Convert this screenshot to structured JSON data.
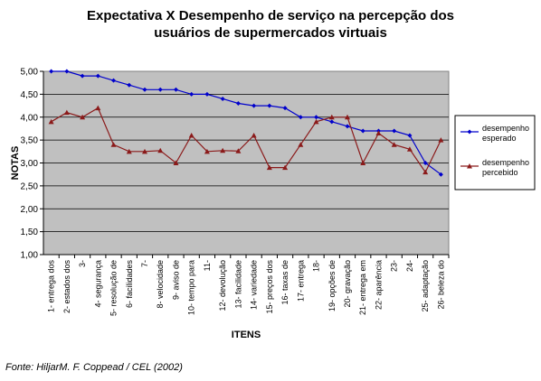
{
  "chart_data": {
    "type": "line",
    "title_line1": "Expectativa X Desempenho de serviço na percepção dos",
    "title_line2": "usuários de supermercados virtuais",
    "xlabel": "ITENS",
    "ylabel": "NOTAS",
    "ylim": [
      1.0,
      5.0
    ],
    "ytick_labels": [
      "1,00",
      "1,50",
      "2,00",
      "2,50",
      "3,00",
      "3,50",
      "4,00",
      "4,50",
      "5,00"
    ],
    "grid": true,
    "legend_position": "right",
    "categories": [
      "1- entrega dos",
      "2- estados dos",
      "3-",
      "4- segurança",
      "5- resolução de",
      "6- facilidades",
      "7-",
      "8- velocidade",
      "9- aviso de",
      "10- tempo para",
      "11-",
      "12- devolução",
      "13- facilidade",
      "14- variedade",
      "15- preços dos",
      "16- taxas de",
      "17- entrega",
      "18-",
      "19- opções de",
      "20- gravação",
      "21- entrega em",
      "22- aparência",
      "23-",
      "24-",
      "25- adaptação",
      "26- beleza do"
    ],
    "series": [
      {
        "name_line1": "desempenho",
        "name_line2": "esperado",
        "color": "#0000cc",
        "marker": "diamond",
        "values": [
          5.0,
          5.0,
          4.9,
          4.9,
          4.8,
          4.7,
          4.6,
          4.6,
          4.6,
          4.5,
          4.5,
          4.4,
          4.3,
          4.25,
          4.25,
          4.2,
          4.0,
          4.0,
          3.9,
          3.8,
          3.7,
          3.7,
          3.7,
          3.6,
          3.0,
          2.75
        ]
      },
      {
        "name_line1": "desempenho",
        "name_line2": "percebido",
        "color": "#8b1a1a",
        "marker": "triangle",
        "values": [
          3.9,
          4.1,
          4.0,
          4.2,
          3.4,
          3.25,
          3.25,
          3.27,
          3.0,
          3.6,
          3.25,
          3.27,
          3.26,
          3.6,
          2.9,
          2.9,
          3.4,
          3.9,
          4.0,
          4.0,
          3.0,
          3.65,
          3.4,
          3.3,
          2.8,
          3.5
        ]
      }
    ]
  },
  "source": "Fonte: HiljarM. F. Coppead / CEL (2002)"
}
